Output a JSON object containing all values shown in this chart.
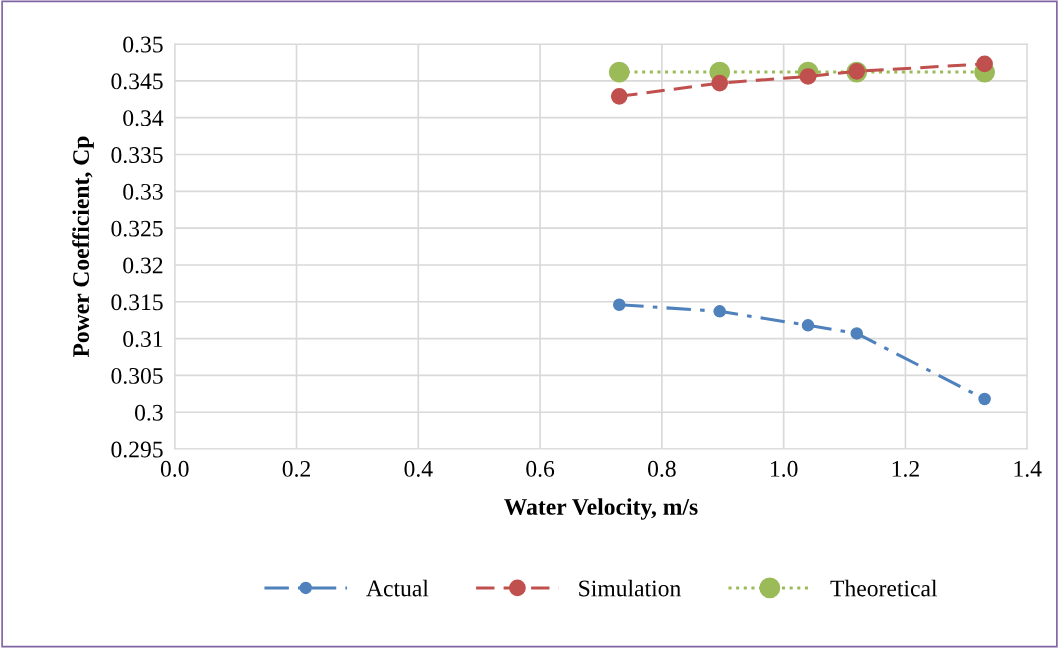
{
  "chart_data": {
    "type": "line",
    "xlabel": "Water Velocity, m/s",
    "ylabel": "Power Coefficient, Cp",
    "x": [
      0.73,
      0.895,
      1.04,
      1.12,
      1.33
    ],
    "series": [
      {
        "name": "Actual",
        "color": "#4f81bd",
        "line_style": "dashdot",
        "values": [
          0.3146,
          0.3137,
          0.3118,
          0.3107,
          0.3018
        ]
      },
      {
        "name": "Simulation",
        "color": "#c0504d",
        "line_style": "dashed",
        "values": [
          0.3429,
          0.3447,
          0.3456,
          0.3463,
          0.3473
        ]
      },
      {
        "name": "Theoretical",
        "color": "#9bbb59",
        "line_style": "dotted",
        "values": [
          0.3462,
          0.3462,
          0.3462,
          0.3462,
          0.3462
        ]
      }
    ],
    "xlim": [
      0,
      1.4
    ],
    "xticks": [
      {
        "value": 0,
        "label": "0.0"
      },
      0.2,
      0.4,
      0.6,
      0.8,
      {
        "value": 1.0,
        "label": "1.0"
      },
      1.2,
      1.4
    ],
    "ylim": [
      0.295,
      0.35
    ],
    "yticks": [
      0.295,
      {
        "value": 0.3,
        "label": "0.3"
      },
      0.305,
      0.31,
      0.315,
      0.32,
      0.325,
      0.33,
      0.335,
      0.34,
      0.345,
      0.35
    ],
    "grid": true,
    "legend": "bottom",
    "marker": "circle"
  }
}
